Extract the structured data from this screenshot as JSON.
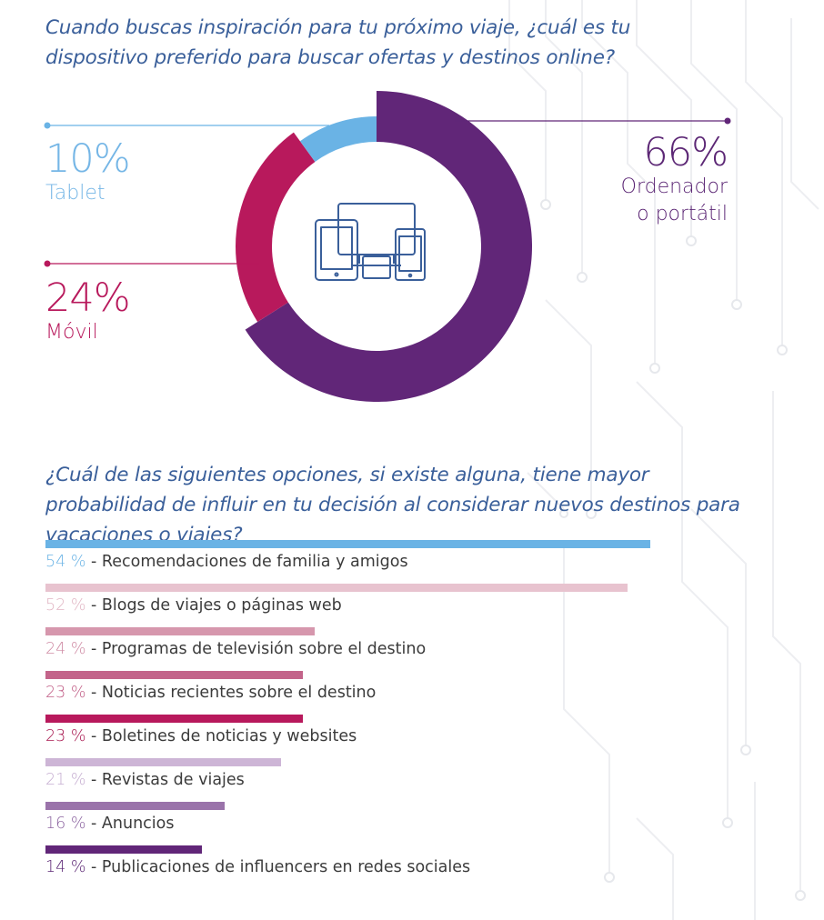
{
  "questions": {
    "q1": "Cuando buscas inspiración para tu próximo viaje, ¿cuál es tu dispositivo preferido para buscar ofertas y destinos online?",
    "q2": "¿Cuál de las siguientes opciones, si existe alguna, tiene mayor probabilidad de influir en tu decisión al considerar nuevos destinos para vacaciones o viajes?"
  },
  "chart_data": [
    {
      "type": "pie",
      "title": "",
      "slices": [
        {
          "label": "Ordenador o portátil",
          "label_line1": "Ordenador",
          "label_line2": "o portátil",
          "value": 66,
          "display": "66%",
          "color": "#612678"
        },
        {
          "label": "Móvil",
          "value": 24,
          "display": "24%",
          "color": "#b8195c"
        },
        {
          "label": "Tablet",
          "value": 10,
          "display": "10%",
          "color": "#6ab3e5"
        }
      ],
      "center_icon": "devices-icon"
    },
    {
      "type": "bar",
      "orientation": "horizontal",
      "title": "",
      "xlim": [
        0,
        54
      ],
      "bars": [
        {
          "value": 54,
          "display": "54 %",
          "label": "Recomendaciones de familia y amigos",
          "color": "#6ab3e5",
          "text_color": "#6ab3e5"
        },
        {
          "value": 52,
          "display": "52 %",
          "label": "Blogs de viajes o páginas web",
          "color": "#e8c3cf",
          "text_color": "#e1b6c4"
        },
        {
          "value": 24,
          "display": "24 %",
          "label": "Programas de televisión sobre el destino",
          "color": "#d697ad",
          "text_color": "#cf8ba4"
        },
        {
          "value": 23,
          "display": "23 %",
          "label": "Noticias recientes sobre el destino",
          "color": "#c3648a",
          "text_color": "#c15d86"
        },
        {
          "value": 23,
          "display": "23 %",
          "label": "Boletines de noticias y websites",
          "color": "#b8195c",
          "text_color": "#a8174f"
        },
        {
          "value": 21,
          "display": "21 %",
          "label": "Revistas de viajes",
          "color": "#cdb5d6",
          "text_color": "#c6aed1"
        },
        {
          "value": 16,
          "display": "16 %",
          "label": "Anuncios",
          "color": "#9a73aa",
          "text_color": "#8c64a0"
        },
        {
          "value": 14,
          "display": "14 %",
          "label": "Publicaciones de influencers en redes sociales",
          "color": "#612678",
          "text_color": "#5c2775"
        }
      ]
    }
  ],
  "colors": {
    "question": "#3a5f9a",
    "label_text": "#3b3b3b"
  }
}
